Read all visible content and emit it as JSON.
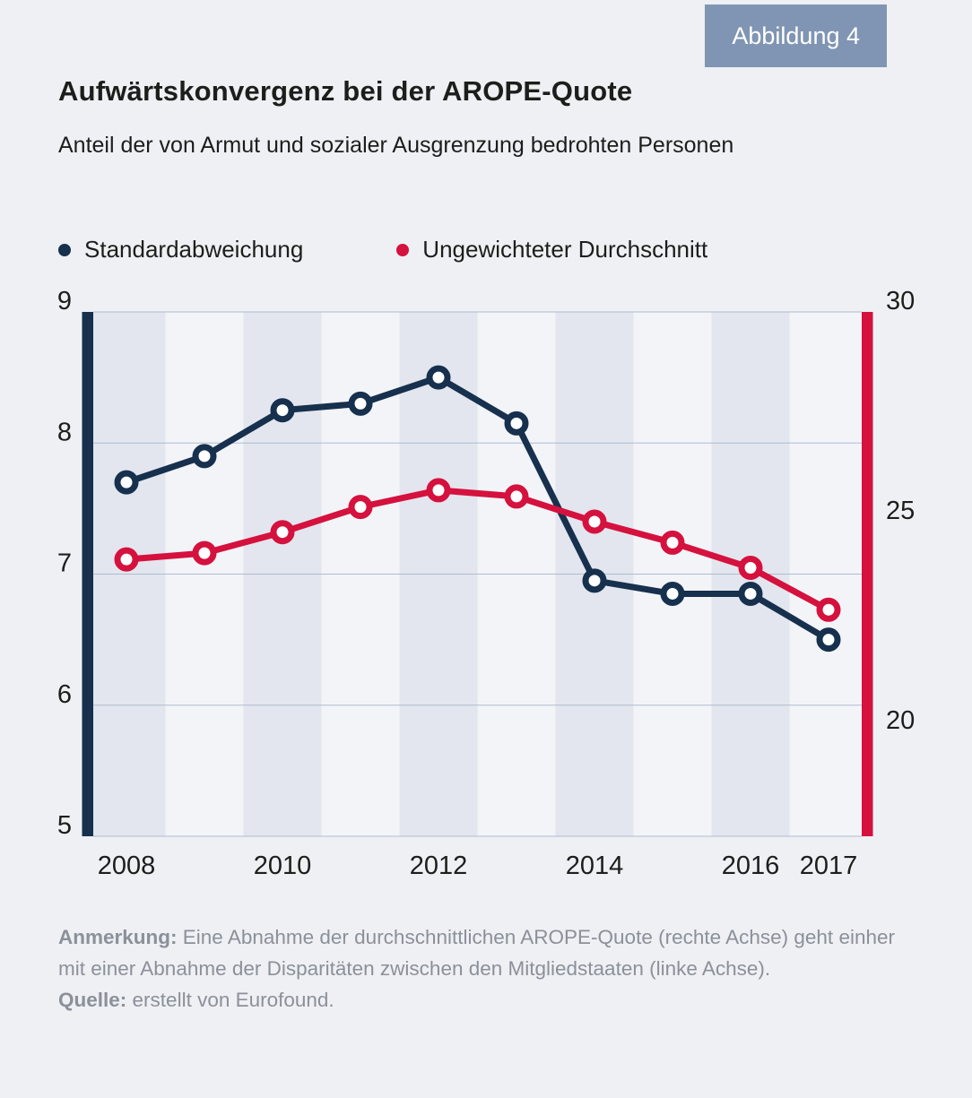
{
  "badge": {
    "label": "Abbildung 4",
    "bg_color": "#8095b3"
  },
  "title": "Aufwärtskonvergenz bei der AROPE-Quote",
  "subtitle": "Anteil der von Armut und sozialer Ausgrenzung bedrohten Personen",
  "legend": [
    {
      "label": "Standardabweichung",
      "color": "#16304d"
    },
    {
      "label": "Ungewichteter Durchschnitt",
      "color": "#d5113e"
    }
  ],
  "chart_data": {
    "type": "line",
    "x": [
      2008,
      2009,
      2010,
      2011,
      2012,
      2013,
      2014,
      2015,
      2016,
      2017
    ],
    "x_tick_labels": [
      "2008",
      "2010",
      "2012",
      "2014",
      "2016",
      "2017"
    ],
    "series": [
      {
        "name": "Standardabweichung",
        "axis": "left",
        "color": "#16304d",
        "values": [
          7.7,
          7.9,
          8.25,
          8.3,
          8.5,
          8.15,
          6.95,
          6.85,
          6.85,
          6.5
        ]
      },
      {
        "name": "Ungewichteter Durchschnitt",
        "axis": "right",
        "color": "#d5113e",
        "values": [
          24.1,
          24.25,
          24.75,
          25.35,
          25.75,
          25.6,
          25.0,
          24.5,
          23.9,
          22.9
        ]
      }
    ],
    "left_axis": {
      "min": 5,
      "max": 9,
      "ticks": [
        9,
        8,
        7,
        6,
        5
      ],
      "color": "#16304d"
    },
    "right_axis": {
      "min": 17.5,
      "max": 30,
      "ticks": [
        30,
        25,
        20
      ],
      "color": "#d5113e"
    },
    "grid": true,
    "legend_position": "top",
    "stripe_dark": "#e3e6ee",
    "stripe_light": "#f3f4f8",
    "gridline_color": "#afbbd1",
    "tick_label_color": "#1d1d1b"
  },
  "note": {
    "label": "Anmerkung:",
    "text": "Eine Abnahme der durchschnittlichen AROPE-Quote (rechte Achse) geht einher mit einer Abnahme der Disparitäten zwischen den Mitgliedstaaten (linke Achse)."
  },
  "source": {
    "label": "Quelle:",
    "text": "erstellt von Eurofound."
  }
}
